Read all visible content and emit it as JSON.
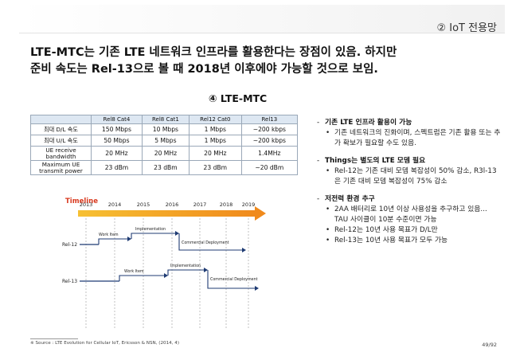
{
  "header": {
    "section_tag": "② IoT 전용망"
  },
  "headline": {
    "line1": "LTE-MTC는 기존 LTE 네트워크 인프라를 활용한다는 장점이 있음. 하지만",
    "line2": "준비 속도는 Rel-13으로 볼 때 2018년 이후에야 가능할 것으로 보임."
  },
  "panel_title": "④ LTE-MTC",
  "table": {
    "columns": [
      "",
      "Rel8 Cat4",
      "Rel8 Cat1",
      "Rel12 Cat0",
      "Rel13"
    ],
    "rows": [
      {
        "label": "최대 D/L 속도",
        "values": [
          "150 Mbps",
          "10 Mbps",
          "1 Mbps",
          "~200 kbps"
        ]
      },
      {
        "label": "최대 U/L 속도",
        "values": [
          "50 Mbps",
          "5 Mbps",
          "1 Mbps",
          "~200 kbps"
        ]
      },
      {
        "label": "UE receive bandwidth",
        "values": [
          "20 MHz",
          "20 MHz",
          "20 MHz",
          "1.4MHz"
        ]
      },
      {
        "label": "Maximum UE transmit power",
        "values": [
          "23 dBm",
          "23 dBm",
          "23 dBm",
          "~20 dBm"
        ]
      }
    ]
  },
  "timeline": {
    "title": "Timeline",
    "years": [
      "2013",
      "2014",
      "2015",
      "2016",
      "2017",
      "2018",
      "2019"
    ],
    "tracks": [
      {
        "name": "Rel-12",
        "work_item": "Work Item",
        "implementation": "Implementation",
        "deployment": "Commercial Deployment"
      },
      {
        "name": "Rel-13",
        "work_item": "Work Item",
        "implementation": "Implementation",
        "deployment": "Commercial Deployment"
      }
    ]
  },
  "bullets": [
    {
      "head": "기존 LTE 인프라 활용이 가능",
      "items": [
        "기존 네트워크의 진화이며, 스펙트럼은 기존 활용 또는 추가 확보가 필요할 수도 있음."
      ]
    },
    {
      "head": "Things는 별도의 LTE 모뎀 필요",
      "items": [
        "Rel-12는 기존 대비 모뎀 복잡성이 50% 감소, R3l-13은 기존 대비 모뎀 복잡성이 75% 감소"
      ]
    },
    {
      "head": "저전력 환경 추구",
      "items": [
        "2AA 배터리로 10년 이상 사용성을 추구하고 있음... TAU 사이클이 10분 수준이면 가능",
        "Rel-12는 10년 사용 목표가 D/L만",
        "Rel-13는 10년 사용 목표가 모두 가능"
      ]
    }
  ],
  "footnote": "※ Source : LTE Evolution for Cellular IoT, Ericsson & NSN, (2014, 4)",
  "page_number": "49/92"
}
